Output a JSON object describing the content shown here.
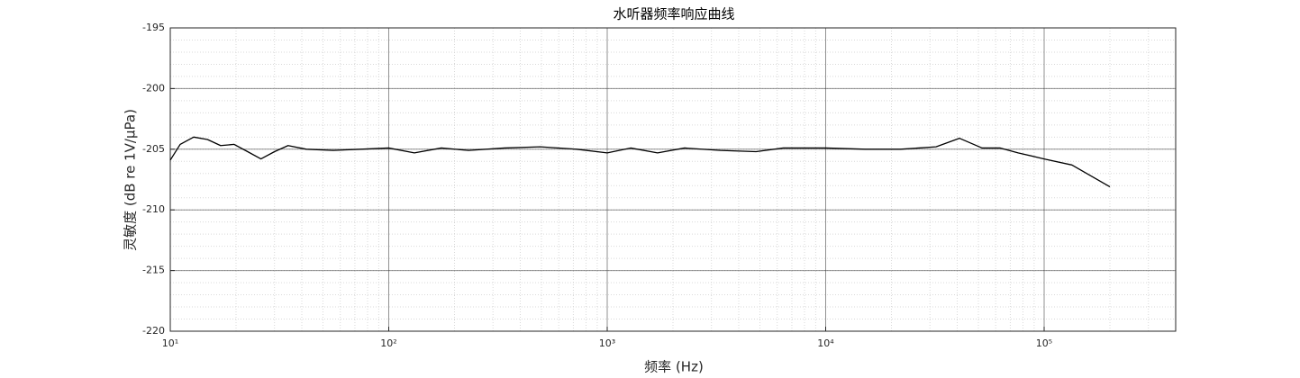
{
  "chart_data": {
    "type": "line",
    "title": "水听器频率响应曲线",
    "x_label": "频率 (Hz)",
    "y_label": "灵敏度 (dB re 1V/μPa)",
    "x_scale": "log",
    "grid": true,
    "minor_grid": true,
    "xlim": [
      10,
      400000
    ],
    "ylim": [
      -220,
      -195
    ],
    "xticks": [
      {
        "value": 10,
        "label": "10¹"
      },
      {
        "value": 100,
        "label": "10²"
      },
      {
        "value": 1000,
        "label": "10³"
      },
      {
        "value": 10000,
        "label": "10⁴"
      },
      {
        "value": 100000,
        "label": "10⁵"
      }
    ],
    "yticks": [
      -220,
      -215,
      -210,
      -205,
      -200,
      -195
    ],
    "series": [
      {
        "color": "#000000",
        "x": [
          10,
          11.1,
          12.8,
          14.8,
          17,
          19.6,
          22.6,
          26,
          30,
          34.6,
          42,
          55.7,
          74.5,
          100,
          131,
          174,
          232,
          339,
          494,
          724,
          1000,
          1280,
          1700,
          2260,
          3300,
          4800,
          6400,
          10000,
          15200,
          22000,
          32000,
          41000,
          52000,
          63000,
          76000,
          100000,
          134000,
          200000
        ],
        "values": [
          -205.9,
          -204.6,
          -204.0,
          -204.2,
          -204.7,
          -204.6,
          -205.2,
          -205.8,
          -205.2,
          -204.7,
          -205.0,
          -205.1,
          -205.0,
          -204.9,
          -205.3,
          -204.9,
          -205.1,
          -204.9,
          -204.8,
          -205.0,
          -205.3,
          -204.9,
          -205.3,
          -204.9,
          -205.1,
          -205.2,
          -204.9,
          -204.9,
          -205.0,
          -205.0,
          -204.8,
          -204.1,
          -204.9,
          -204.9,
          -205.3,
          -205.8,
          -206.3,
          -208.1
        ]
      }
    ]
  }
}
